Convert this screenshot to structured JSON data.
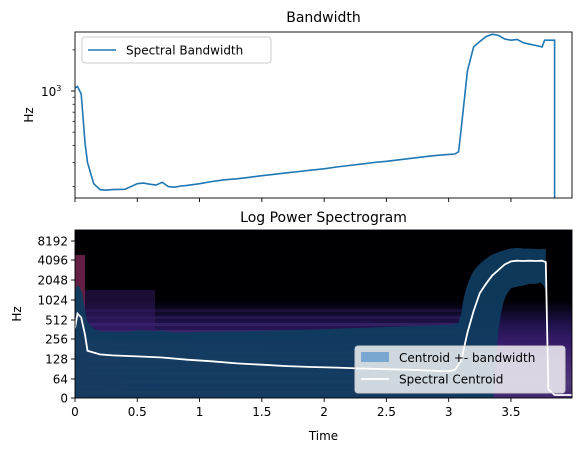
{
  "chart_data": [
    {
      "type": "line",
      "title": "Bandwidth",
      "xlabel": "",
      "ylabel": "Hz",
      "yscale": "log",
      "xlim": [
        0,
        3.99
      ],
      "ylim": [
        165,
        2700
      ],
      "ytick_label": "10",
      "ytick_exp": "3",
      "ytick_value": 1000,
      "minor_yticks": [
        200,
        300,
        400,
        500,
        600,
        700,
        800,
        900,
        2000
      ],
      "xticks": [
        0,
        0.5,
        1,
        1.5,
        2,
        2.5,
        3,
        3.5
      ],
      "grid": false,
      "legend": "top-left",
      "series": [
        {
          "name": "Spectral Bandwidth",
          "color": "#1f77b4",
          "x": [
            0.0,
            0.02,
            0.05,
            0.08,
            0.1,
            0.15,
            0.2,
            0.25,
            0.3,
            0.4,
            0.5,
            0.55,
            0.6,
            0.65,
            0.7,
            0.75,
            0.8,
            0.85,
            0.9,
            1.0,
            1.1,
            1.2,
            1.3,
            1.4,
            1.5,
            1.6,
            1.7,
            1.8,
            1.9,
            2.0,
            2.1,
            2.2,
            2.3,
            2.4,
            2.5,
            2.6,
            2.7,
            2.8,
            2.9,
            3.0,
            3.05,
            3.08,
            3.1,
            3.15,
            3.2,
            3.25,
            3.3,
            3.35,
            3.4,
            3.45,
            3.5,
            3.55,
            3.6,
            3.65,
            3.7,
            3.75,
            3.77,
            3.8,
            3.85,
            3.85
          ],
          "values": [
            1050,
            1080,
            950,
            420,
            300,
            210,
            190,
            188,
            190,
            191,
            210,
            212,
            208,
            205,
            215,
            200,
            198,
            202,
            204,
            210,
            218,
            224,
            228,
            234,
            240,
            246,
            252,
            258,
            264,
            270,
            278,
            285,
            292,
            300,
            306,
            314,
            322,
            330,
            338,
            344,
            346,
            360,
            520,
            1400,
            2100,
            2300,
            2500,
            2600,
            2550,
            2400,
            2350,
            2380,
            2250,
            2200,
            2150,
            2100,
            2350,
            2350,
            2350,
            160
          ]
        }
      ]
    },
    {
      "type": "heatmap",
      "title": "Log Power Spectrogram",
      "xlabel": "Time",
      "ylabel": "Hz",
      "xlim": [
        0,
        3.99
      ],
      "ytick_labels": [
        "0",
        "64",
        "128",
        "256",
        "512",
        "1024",
        "2048",
        "4096",
        "8192"
      ],
      "yticks": [
        0,
        64,
        128,
        256,
        512,
        1024,
        2048,
        4096,
        8192
      ],
      "xticks": [
        0,
        0.5,
        1,
        1.5,
        2,
        2.5,
        3,
        3.5
      ],
      "xtick_labels": [
        "0",
        "0.5",
        "1",
        "1.5",
        "2",
        "2.5",
        "3",
        "3.5"
      ],
      "legend": "bottom-right",
      "series": [
        {
          "name": "Centroid +- bandwidth",
          "color": "#7aa7cf",
          "fill_color": "#0f3b5f"
        },
        {
          "name": "Spectral Centroid",
          "color": "#ffffff",
          "x": [
            0.0,
            0.02,
            0.05,
            0.08,
            0.1,
            0.2,
            0.3,
            0.5,
            0.7,
            0.9,
            1.1,
            1.3,
            1.5,
            1.7,
            1.9,
            2.1,
            2.3,
            2.5,
            2.7,
            2.9,
            3.0,
            3.05,
            3.1,
            3.15,
            3.2,
            3.25,
            3.3,
            3.35,
            3.4,
            3.45,
            3.5,
            3.55,
            3.6,
            3.65,
            3.7,
            3.75,
            3.78,
            3.8,
            3.85,
            3.99
          ],
          "values": [
            380,
            640,
            560,
            300,
            170,
            150,
            145,
            140,
            135,
            125,
            118,
            110,
            105,
            100,
            97,
            95,
            92,
            90,
            88,
            85,
            84,
            88,
            120,
            320,
            700,
            1300,
            1800,
            2400,
            2900,
            3500,
            3900,
            4000,
            3950,
            4000,
            3950,
            4000,
            3800,
            30,
            10,
            10
          ]
        }
      ]
    }
  ]
}
